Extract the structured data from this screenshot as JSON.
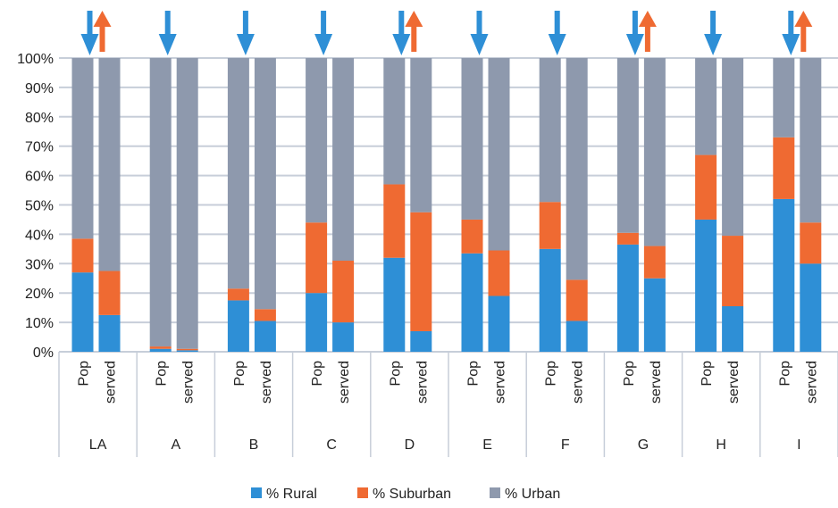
{
  "chart_data": {
    "type": "bar",
    "stacked": true,
    "ylim": [
      0,
      100
    ],
    "yticks": [
      "0%",
      "10%",
      "20%",
      "30%",
      "40%",
      "50%",
      "60%",
      "70%",
      "80%",
      "90%",
      "100%"
    ],
    "grid": true,
    "legend_position": "bottom",
    "groups": [
      {
        "label": "LA",
        "bars": [
          {
            "label": "Pop",
            "rural": 27,
            "suburban": 11.5,
            "urban": 61.5
          },
          {
            "label": "served",
            "rural": 12.5,
            "suburban": 15,
            "urban": 72.5
          }
        ],
        "arrows": [
          "down",
          "up"
        ]
      },
      {
        "label": "A",
        "bars": [
          {
            "label": "Pop",
            "rural": 1,
            "suburban": 0.8,
            "urban": 98.2
          },
          {
            "label": "served",
            "rural": 0.5,
            "suburban": 0.5,
            "urban": 99
          }
        ],
        "arrows": [
          "down"
        ]
      },
      {
        "label": "B",
        "bars": [
          {
            "label": "Pop",
            "rural": 17.5,
            "suburban": 4,
            "urban": 78.5
          },
          {
            "label": "served",
            "rural": 10.5,
            "suburban": 4,
            "urban": 85.5
          }
        ],
        "arrows": [
          "down"
        ]
      },
      {
        "label": "C",
        "bars": [
          {
            "label": "Pop",
            "rural": 20,
            "suburban": 24,
            "urban": 56
          },
          {
            "label": "served",
            "rural": 10,
            "suburban": 21,
            "urban": 69
          }
        ],
        "arrows": [
          "down"
        ]
      },
      {
        "label": "D",
        "bars": [
          {
            "label": "Pop",
            "rural": 32,
            "suburban": 25,
            "urban": 43
          },
          {
            "label": "served",
            "rural": 7,
            "suburban": 40.5,
            "urban": 52.5
          }
        ],
        "arrows": [
          "down",
          "up"
        ]
      },
      {
        "label": "E",
        "bars": [
          {
            "label": "Pop",
            "rural": 33.5,
            "suburban": 11.5,
            "urban": 55
          },
          {
            "label": "served",
            "rural": 19,
            "suburban": 15.5,
            "urban": 65.5
          }
        ],
        "arrows": [
          "down"
        ]
      },
      {
        "label": "F",
        "bars": [
          {
            "label": "Pop",
            "rural": 35,
            "suburban": 16,
            "urban": 49
          },
          {
            "label": "served",
            "rural": 10.5,
            "suburban": 14,
            "urban": 75.5
          }
        ],
        "arrows": [
          "down"
        ]
      },
      {
        "label": "G",
        "bars": [
          {
            "label": "Pop",
            "rural": 36.5,
            "suburban": 4,
            "urban": 59.5
          },
          {
            "label": "served",
            "rural": 25,
            "suburban": 11,
            "urban": 64
          }
        ],
        "arrows": [
          "down",
          "up"
        ]
      },
      {
        "label": "H",
        "bars": [
          {
            "label": "Pop",
            "rural": 45,
            "suburban": 22,
            "urban": 33
          },
          {
            "label": "served",
            "rural": 15.5,
            "suburban": 24,
            "urban": 60.5
          }
        ],
        "arrows": [
          "down"
        ]
      },
      {
        "label": "I",
        "bars": [
          {
            "label": "Pop",
            "rural": 52,
            "suburban": 21,
            "urban": 27
          },
          {
            "label": "served",
            "rural": 30,
            "suburban": 14,
            "urban": 56
          }
        ],
        "arrows": [
          "down",
          "up"
        ]
      }
    ],
    "series": [
      {
        "key": "rural",
        "name": "% Rural",
        "color": "#2e8fd6"
      },
      {
        "key": "suburban",
        "name": "% Suburban",
        "color": "#ef6a32"
      },
      {
        "key": "urban",
        "name": "% Urban",
        "color": "#8e99ad"
      }
    ]
  }
}
